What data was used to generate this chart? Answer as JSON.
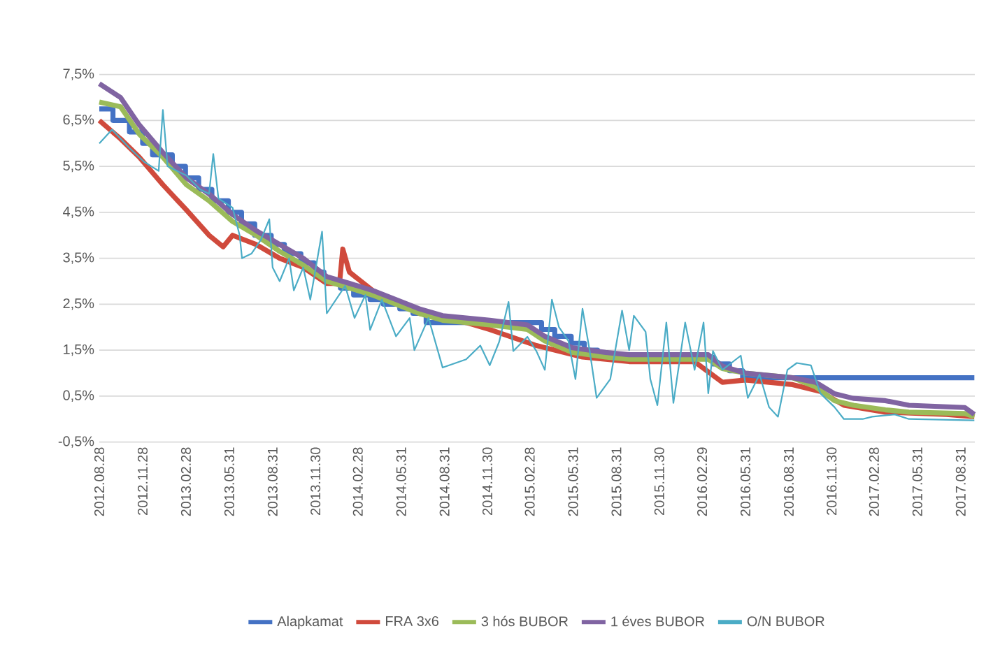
{
  "chart_data": {
    "type": "line",
    "xlim": [
      "2012-08-28",
      "2017-09-30"
    ],
    "ylim": [
      -0.5,
      7.5
    ],
    "xticks": [
      {
        "value": "2012-08-28",
        "label": "2012.08.28"
      },
      {
        "value": "2012-11-28",
        "label": "2012.11.28"
      },
      {
        "value": "2013-02-28",
        "label": "2013.02.28"
      },
      {
        "value": "2013-05-31",
        "label": "2013.05.31"
      },
      {
        "value": "2013-08-31",
        "label": "2013.08.31"
      },
      {
        "value": "2013-11-30",
        "label": "2013.11.30"
      },
      {
        "value": "2014-02-28",
        "label": "2014.02.28"
      },
      {
        "value": "2014-05-31",
        "label": "2014.05.31"
      },
      {
        "value": "2014-08-31",
        "label": "2014.08.31"
      },
      {
        "value": "2014-11-30",
        "label": "2014.11.30"
      },
      {
        "value": "2015-02-28",
        "label": "2015.02.28"
      },
      {
        "value": "2015-05-31",
        "label": "2015.05.31"
      },
      {
        "value": "2015-08-31",
        "label": "2015.08.31"
      },
      {
        "value": "2015-11-30",
        "label": "2015.11.30"
      },
      {
        "value": "2016-02-29",
        "label": "2016.02.29"
      },
      {
        "value": "2016-05-31",
        "label": "2016.05.31"
      },
      {
        "value": "2016-08-31",
        "label": "2016.08.31"
      },
      {
        "value": "2016-11-30",
        "label": "2016.11.30"
      },
      {
        "value": "2017-02-28",
        "label": "2017.02.28"
      },
      {
        "value": "2017-05-31",
        "label": "2017.05.31"
      },
      {
        "value": "2017-08-31",
        "label": "2017.08.31"
      }
    ],
    "yticks": [
      {
        "value": -0.5,
        "label": "-0,5%"
      },
      {
        "value": 0.5,
        "label": "0,5%"
      },
      {
        "value": 1.5,
        "label": "1,5%"
      },
      {
        "value": 2.5,
        "label": "2,5%"
      },
      {
        "value": 3.5,
        "label": "3,5%"
      },
      {
        "value": 4.5,
        "label": "4,5%"
      },
      {
        "value": 5.5,
        "label": "5,5%"
      },
      {
        "value": 6.5,
        "label": "6,5%"
      },
      {
        "value": 7.5,
        "label": "7,5%"
      }
    ],
    "grid": "y",
    "legend": "bottom",
    "series": [
      {
        "name": "Alapkamat",
        "type": "step",
        "color": "#4472c4",
        "x": [
          "2012-08-28",
          "2012-09-26",
          "2012-10-31",
          "2012-11-28",
          "2012-12-19",
          "2013-01-30",
          "2013-02-27",
          "2013-03-27",
          "2013-04-24",
          "2013-05-29",
          "2013-06-26",
          "2013-07-24",
          "2013-08-28",
          "2013-09-25",
          "2013-10-30",
          "2013-11-27",
          "2013-12-18",
          "2014-01-22",
          "2014-02-19",
          "2014-03-26",
          "2014-04-23",
          "2014-05-28",
          "2014-06-25",
          "2014-07-23",
          "2015-03-25",
          "2015-04-22",
          "2015-05-27",
          "2015-06-24",
          "2015-07-22",
          "2016-03-23",
          "2016-04-27",
          "2016-05-25",
          "2017-09-29"
        ],
        "values": [
          6.75,
          6.5,
          6.25,
          6.0,
          5.75,
          5.5,
          5.25,
          5.0,
          4.75,
          4.5,
          4.25,
          4.0,
          3.8,
          3.6,
          3.4,
          3.2,
          3.0,
          2.85,
          2.7,
          2.6,
          2.5,
          2.4,
          2.3,
          2.1,
          1.95,
          1.8,
          1.65,
          1.5,
          1.35,
          1.2,
          1.05,
          0.9,
          0.9
        ]
      },
      {
        "name": "FRA 3x6",
        "color": "#d04a3c",
        "x": [
          "2012-08-28",
          "2012-10-12",
          "2012-11-21",
          "2013-01-10",
          "2013-03-01",
          "2013-04-18",
          "2013-05-18",
          "2013-06-07",
          "2013-07-27",
          "2013-09-15",
          "2013-11-04",
          "2013-12-24",
          "2014-01-20",
          "2014-01-27",
          "2014-02-10",
          "2014-03-31",
          "2014-05-20",
          "2014-07-08",
          "2014-10-16",
          "2014-12-05",
          "2015-03-14",
          "2015-06-20",
          "2015-09-27",
          "2016-02-13",
          "2016-04-12",
          "2016-05-31",
          "2016-09-08",
          "2016-11-06",
          "2016-12-26",
          "2017-03-24",
          "2017-08-01",
          "2017-09-29"
        ],
        "values": [
          6.5,
          6.1,
          5.7,
          5.1,
          4.55,
          4.0,
          3.75,
          4.0,
          3.8,
          3.5,
          3.3,
          2.95,
          2.95,
          3.7,
          3.2,
          2.8,
          2.55,
          2.3,
          2.1,
          1.95,
          1.6,
          1.35,
          1.25,
          1.25,
          0.8,
          0.85,
          0.75,
          0.6,
          0.3,
          0.15,
          0.1,
          0.05
        ]
      },
      {
        "name": "3 hós BUBOR",
        "color": "#9bbb59",
        "x": [
          "2012-08-28",
          "2012-10-12",
          "2012-11-21",
          "2013-01-10",
          "2013-03-01",
          "2013-04-18",
          "2013-06-07",
          "2013-07-27",
          "2013-09-15",
          "2013-11-04",
          "2013-12-24",
          "2014-02-11",
          "2014-03-31",
          "2014-05-20",
          "2014-07-08",
          "2014-08-27",
          "2014-10-16",
          "2014-12-05",
          "2015-02-23",
          "2015-04-01",
          "2015-05-30",
          "2015-08-08",
          "2015-09-27",
          "2016-03-13",
          "2016-04-12",
          "2016-05-31",
          "2016-09-08",
          "2016-10-27",
          "2016-12-06",
          "2017-01-15",
          "2017-03-24",
          "2017-05-13",
          "2017-09-09",
          "2017-09-29"
        ],
        "values": [
          6.9,
          6.8,
          6.2,
          5.7,
          5.1,
          4.75,
          4.3,
          4.0,
          3.65,
          3.35,
          3.0,
          2.85,
          2.7,
          2.5,
          2.3,
          2.15,
          2.1,
          2.05,
          1.95,
          1.7,
          1.45,
          1.35,
          1.3,
          1.3,
          1.1,
          1.0,
          0.9,
          0.7,
          0.4,
          0.3,
          0.2,
          0.15,
          0.12,
          0.05
        ]
      },
      {
        "name": "1 éves BUBOR",
        "color": "#8064a2",
        "x": [
          "2012-08-28",
          "2012-10-12",
          "2012-11-21",
          "2013-01-10",
          "2013-03-01",
          "2013-04-18",
          "2013-06-07",
          "2013-07-27",
          "2013-09-15",
          "2013-11-04",
          "2013-12-24",
          "2014-02-11",
          "2014-03-31",
          "2014-05-20",
          "2014-07-08",
          "2014-08-27",
          "2014-10-16",
          "2014-12-05",
          "2015-02-23",
          "2015-04-01",
          "2015-05-30",
          "2015-08-08",
          "2015-09-27",
          "2016-03-13",
          "2016-04-12",
          "2016-05-31",
          "2016-09-08",
          "2016-10-27",
          "2016-12-06",
          "2017-01-15",
          "2017-03-24",
          "2017-05-13",
          "2017-09-09",
          "2017-09-29"
        ],
        "values": [
          7.3,
          7.0,
          6.4,
          5.8,
          5.25,
          4.9,
          4.45,
          4.1,
          3.8,
          3.5,
          3.1,
          2.95,
          2.8,
          2.6,
          2.4,
          2.25,
          2.2,
          2.15,
          2.05,
          1.8,
          1.55,
          1.45,
          1.4,
          1.4,
          1.15,
          1.0,
          0.9,
          0.8,
          0.55,
          0.45,
          0.4,
          0.3,
          0.25,
          0.1
        ]
      },
      {
        "name": "O/N BUBOR",
        "color": "#4bacc6",
        "x": [
          "2012-08-28",
          "2012-09-24",
          "2012-10-31",
          "2012-12-01",
          "2013-01-01",
          "2013-01-10",
          "2013-01-20",
          "2013-03-01",
          "2013-03-30",
          "2013-04-18",
          "2013-04-27",
          "2013-05-08",
          "2013-06-07",
          "2013-06-22",
          "2013-06-27",
          "2013-07-17",
          "2013-08-06",
          "2013-08-24",
          "2013-08-31",
          "2013-09-15",
          "2013-10-05",
          "2013-10-15",
          "2013-11-04",
          "2013-11-19",
          "2013-12-14",
          "2013-12-24",
          "2014-02-01",
          "2014-02-21",
          "2014-03-16",
          "2014-03-26",
          "2014-04-20",
          "2014-05-20",
          "2014-06-18",
          "2014-06-28",
          "2014-07-28",
          "2014-08-27",
          "2014-10-16",
          "2014-11-15",
          "2014-12-05",
          "2014-12-25",
          "2015-01-14",
          "2015-01-24",
          "2015-02-23",
          "2015-03-14",
          "2015-04-01",
          "2015-04-16",
          "2015-05-01",
          "2015-05-21",
          "2015-06-05",
          "2015-06-20",
          "2015-07-05",
          "2015-07-20",
          "2015-08-18",
          "2015-09-12",
          "2015-09-27",
          "2015-10-07",
          "2015-11-01",
          "2015-11-11",
          "2015-11-26",
          "2015-12-15",
          "2015-12-30",
          "2016-01-24",
          "2016-02-13",
          "2016-03-03",
          "2016-03-13",
          "2016-03-23",
          "2016-04-12",
          "2016-05-21",
          "2016-06-05",
          "2016-06-30",
          "2016-07-20",
          "2016-08-08",
          "2016-08-28",
          "2016-09-17",
          "2016-10-17",
          "2016-11-06",
          "2016-12-06",
          "2016-12-26",
          "2017-02-04",
          "2017-02-24",
          "2017-04-13",
          "2017-05-13",
          "2017-09-29"
        ],
        "values": [
          6.0,
          6.3,
          5.9,
          5.6,
          5.4,
          6.73,
          5.5,
          5.3,
          5.0,
          4.9,
          5.77,
          4.8,
          4.6,
          4.0,
          3.5,
          3.6,
          3.9,
          4.35,
          3.3,
          3.0,
          3.5,
          2.8,
          3.3,
          2.6,
          4.08,
          2.3,
          2.9,
          2.2,
          2.7,
          1.94,
          2.6,
          1.8,
          2.2,
          1.5,
          2.2,
          1.12,
          1.3,
          1.6,
          1.17,
          1.68,
          2.55,
          1.48,
          1.79,
          1.48,
          1.07,
          2.6,
          2.0,
          1.7,
          0.87,
          2.4,
          1.5,
          0.46,
          0.87,
          2.36,
          1.5,
          2.25,
          1.9,
          0.87,
          0.3,
          2.1,
          0.35,
          2.1,
          1.07,
          2.1,
          0.56,
          1.48,
          1.07,
          1.38,
          0.46,
          0.97,
          0.26,
          0.05,
          1.07,
          1.22,
          1.17,
          0.56,
          0.26,
          0.0,
          0.0,
          0.05,
          0.1,
          0.0,
          -0.03
        ]
      }
    ]
  }
}
